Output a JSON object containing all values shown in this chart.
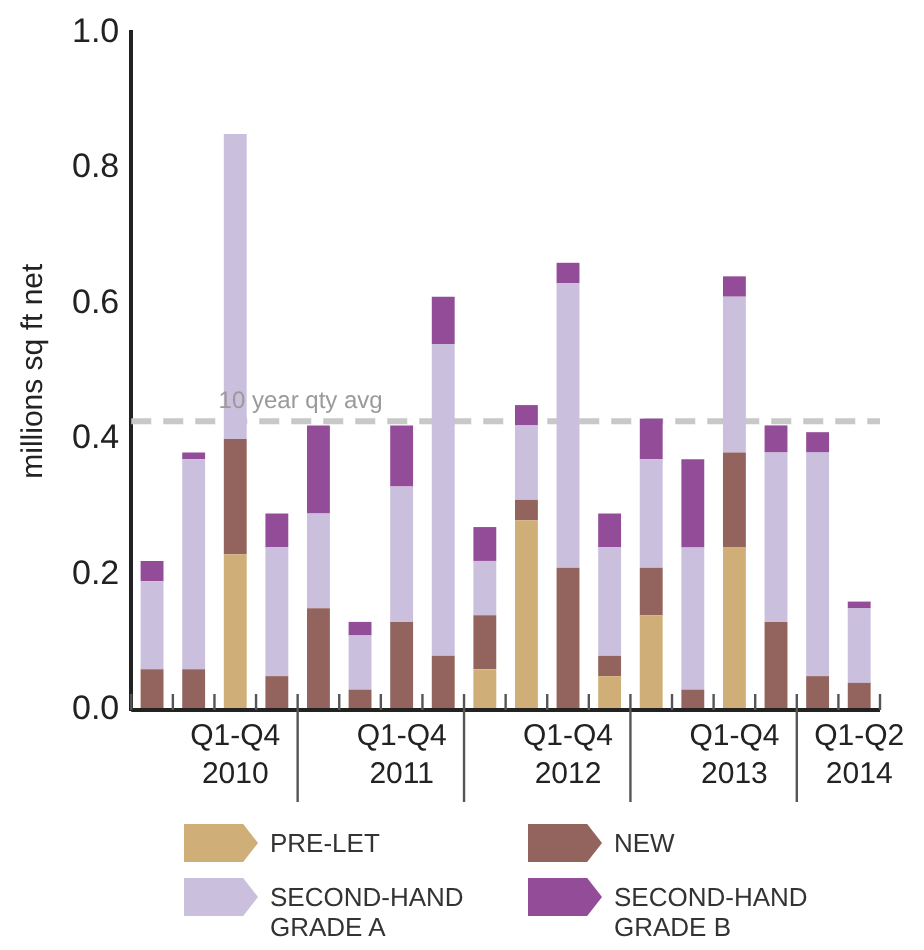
{
  "chart_data": {
    "type": "bar",
    "stacked": true,
    "ylabel": "millions sq ft net",
    "categories": [
      null,
      null,
      "Q1-Q4\n2010",
      null,
      null,
      null,
      "Q1-Q4\n2011",
      null,
      null,
      null,
      "Q1-Q4\n2012",
      null,
      null,
      null,
      "Q1-Q4\n2013",
      null,
      null,
      "Q1-Q2\n2014"
    ],
    "series": [
      {
        "name": "PRE-LET",
        "color": "#cfae78",
        "values": [
          null,
          null,
          0.23,
          null,
          null,
          null,
          null,
          null,
          0.06,
          0.28,
          null,
          0.05,
          0.14,
          null,
          0.24,
          null,
          null,
          null
        ]
      },
      {
        "name": "NEW",
        "color": "#93635e",
        "values": [
          0.06,
          0.06,
          0.17,
          0.05,
          0.15,
          0.03,
          0.13,
          0.08,
          0.08,
          0.03,
          0.21,
          0.03,
          0.07,
          0.03,
          0.14,
          0.13,
          0.05,
          0.04
        ]
      },
      {
        "name": "SECOND-HAND GRADE A",
        "color": "#cabfdc",
        "values": [
          0.13,
          0.31,
          0.45,
          0.19,
          0.14,
          0.08,
          0.2,
          0.46,
          0.08,
          0.11,
          0.42,
          0.16,
          0.16,
          0.21,
          0.23,
          0.25,
          0.33,
          0.11
        ]
      },
      {
        "name": "SECOND-HAND GRADE B",
        "color": "#934d98",
        "values": [
          0.03,
          0.01,
          null,
          0.05,
          0.13,
          0.02,
          0.09,
          0.07,
          0.05,
          0.03,
          0.03,
          0.05,
          0.06,
          0.13,
          0.03,
          0.04,
          0.03,
          0.01
        ]
      }
    ],
    "ylim": [
      0,
      1
    ],
    "yticks": [
      {
        "value": 0,
        "label": "0.0"
      },
      {
        "value": 0.2,
        "label": "0.2"
      },
      {
        "value": 0.4,
        "label": "0.4"
      },
      {
        "value": 0.6,
        "label": "0.6"
      },
      {
        "value": 0.8,
        "label": "0.8"
      },
      {
        "value": 1,
        "label": "1.0"
      }
    ],
    "ref_lines": [
      {
        "axis": "y",
        "value": 0.426,
        "label": "10 year qty avg",
        "color": "#c8c8c8",
        "line_style": "dashed"
      }
    ],
    "grid": false,
    "legend": "bottom"
  }
}
